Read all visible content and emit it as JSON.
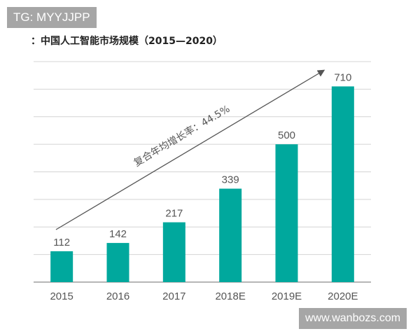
{
  "watermarks": {
    "top_left": "TG: MYYJJPP",
    "bottom_right": "www.wanbozs.com"
  },
  "chart_data": {
    "type": "bar",
    "title": "：中国人工智能市场规模（2015—2020）",
    "categories": [
      "2015",
      "2016",
      "2017",
      "2018E",
      "2019E",
      "2020E"
    ],
    "values": [
      112,
      142,
      217,
      339,
      500,
      710
    ],
    "ylim": [
      0,
      800
    ],
    "grid": true,
    "grid_step": 100,
    "bar_color": "#00a89d",
    "annotation": "复合年均增长率：44.5%",
    "xlabel": "",
    "ylabel": ""
  }
}
